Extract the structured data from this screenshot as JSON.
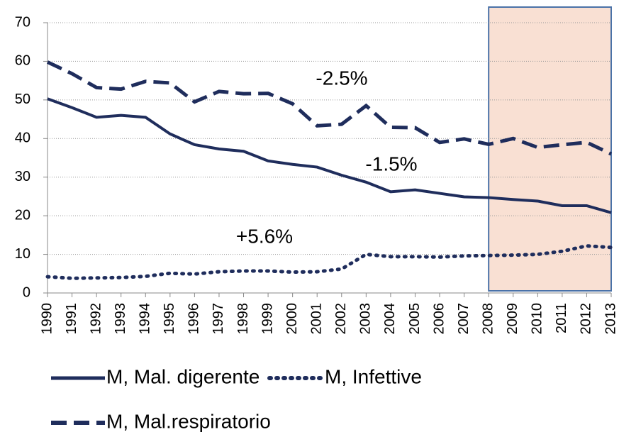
{
  "chart_data": {
    "type": "line",
    "categories": [
      "1990",
      "1991",
      "1992",
      "1993",
      "1994",
      "1995",
      "1996",
      "1997",
      "1998",
      "1999",
      "2000",
      "2001",
      "2002",
      "2003",
      "2004",
      "2005",
      "2006",
      "2007",
      "2008",
      "2009",
      "2010",
      "2011",
      "2012",
      "2013"
    ],
    "series": [
      {
        "name": "M, Mal. digerente",
        "color": "#1f2d5c",
        "style": "solid",
        "values": [
          50.3,
          48,
          45.5,
          46,
          45.5,
          41.2,
          38.4,
          37.3,
          36.7,
          34.2,
          33.3,
          32.6,
          30.5,
          28.7,
          26.2,
          26.7,
          25.8,
          24.9,
          24.7,
          24.2,
          23.8,
          22.6,
          22.6,
          20.8
        ]
      },
      {
        "name": "M, Infettive",
        "color": "#1f2d5c",
        "style": "dotted",
        "values": [
          4.2,
          3.8,
          3.9,
          4.0,
          4.3,
          5.1,
          4.9,
          5.5,
          5.7,
          5.7,
          5.4,
          5.5,
          6.2,
          10.0,
          9.4,
          9.4,
          9.3,
          9.6,
          9.7,
          9.8,
          10.0,
          10.8,
          12.2,
          11.8
        ]
      },
      {
        "name": "M, Mal.respiratorio",
        "color": "#1f2d5c",
        "style": "dashed",
        "values": [
          59.8,
          56.8,
          53.2,
          52.8,
          54.8,
          54.4,
          49.5,
          52.2,
          51.6,
          51.7,
          49.0,
          43.3,
          43.7,
          48.5,
          42.9,
          42.8,
          39.0,
          39.9,
          38.5,
          40.0,
          37.7,
          38.4,
          39.0,
          36.0
        ]
      }
    ],
    "annotations": [
      "-2.5%",
      "-1.5%",
      "+5.6%"
    ],
    "ylim": [
      0,
      70
    ],
    "yticks": [
      0,
      10,
      20,
      30,
      40,
      50,
      60,
      70
    ],
    "grid": true,
    "highlight_range": [
      "2008",
      "2013"
    ],
    "highlight_color": "#f9e0d3",
    "highlight_border": "#4a72a8",
    "legend": "bottom"
  }
}
